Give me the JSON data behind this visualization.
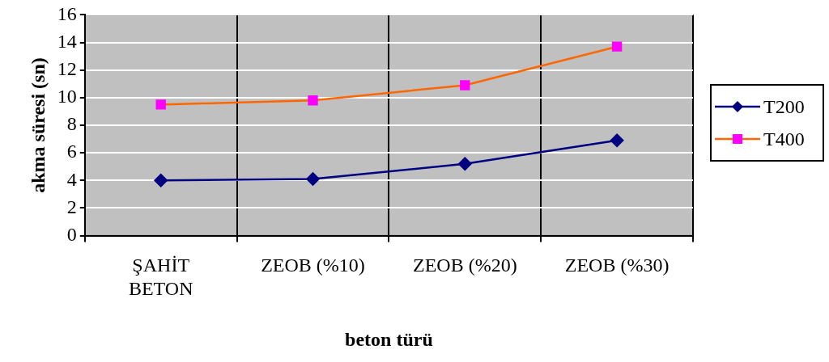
{
  "chart_data": {
    "type": "line",
    "xlabel": "beton türü",
    "ylabel": "akma süresi (sn)",
    "categories": [
      "ŞAHİT BETON",
      "ZEOB (%10)",
      "ZEOB (%20)",
      "ZEOB (%30)"
    ],
    "series": [
      {
        "name": "T200",
        "color": "#000080",
        "marker": "diamond",
        "values": [
          4.0,
          4.1,
          5.2,
          6.9
        ]
      },
      {
        "name": "T400",
        "color": "#ff6600",
        "colors": [
          "#ff00ff",
          "#ff00ff",
          "#ff00ff",
          "#ff00ff"
        ],
        "marker": "square",
        "values": [
          9.5,
          9.8,
          10.9,
          13.7
        ]
      }
    ],
    "ylim": [
      0,
      16
    ],
    "yticks": [
      0,
      2,
      4,
      6,
      8,
      10,
      12,
      14,
      16
    ],
    "grid": true,
    "legend": "right",
    "line_style": "solid"
  }
}
